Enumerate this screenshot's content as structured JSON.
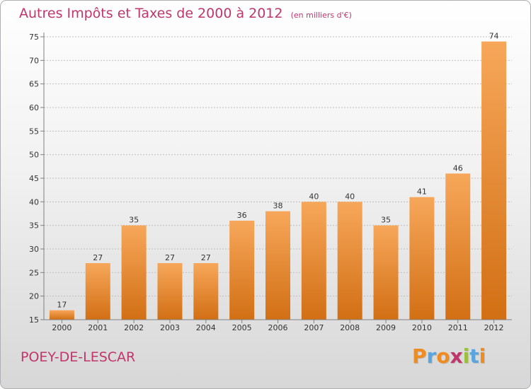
{
  "header": {
    "title": "Autres Impôts et Taxes de 2000 à 2012",
    "unit": "(en milliers d'€)"
  },
  "footer": {
    "commune": "POEY-DE-LESCAR",
    "brand": "Proxiti",
    "brand_letter_colors": [
      "#f28b1e",
      "#58a6dd",
      "#f28b1e",
      "#c1356b",
      "#9ac03c",
      "#58a6dd",
      "#f28b1e"
    ]
  },
  "colors": {
    "title": "#c1356b",
    "bar_top": "#f7a75a",
    "bar_bottom": "#d26f14",
    "axis": "#808080",
    "grid": "#bfbfbf"
  },
  "chart_data": {
    "type": "bar",
    "title": "Autres Impôts et Taxes de 2000 à 2012",
    "subtitle": "(en milliers d'€)",
    "categories": [
      "2000",
      "2001",
      "2002",
      "2003",
      "2004",
      "2005",
      "2006",
      "2007",
      "2008",
      "2009",
      "2010",
      "2011",
      "2012"
    ],
    "values": [
      17,
      27,
      35,
      27,
      27,
      36,
      38,
      40,
      40,
      35,
      41,
      46,
      74
    ],
    "ylim": [
      15,
      75
    ],
    "yticks": [
      15,
      20,
      25,
      30,
      35,
      40,
      45,
      50,
      55,
      60,
      65,
      70,
      75
    ],
    "grid": "horizontal dashed",
    "legend": "none"
  }
}
